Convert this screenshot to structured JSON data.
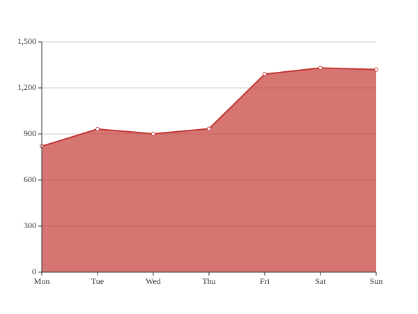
{
  "chart_data": {
    "type": "line",
    "area": true,
    "categories": [
      "Mon",
      "Tue",
      "Wed",
      "Thu",
      "Fri",
      "Sat",
      "Sun"
    ],
    "series": [
      {
        "color": "#c23531",
        "values": [
          820,
          932,
          901,
          934,
          1290,
          1330,
          1320
        ]
      }
    ],
    "ylim": [
      0,
      1500
    ],
    "yticks": [
      0,
      300,
      600,
      900,
      {
        "value": 1200,
        "label": "1,200"
      },
      {
        "value": 1500,
        "label": "1,500"
      }
    ],
    "grid": true
  }
}
